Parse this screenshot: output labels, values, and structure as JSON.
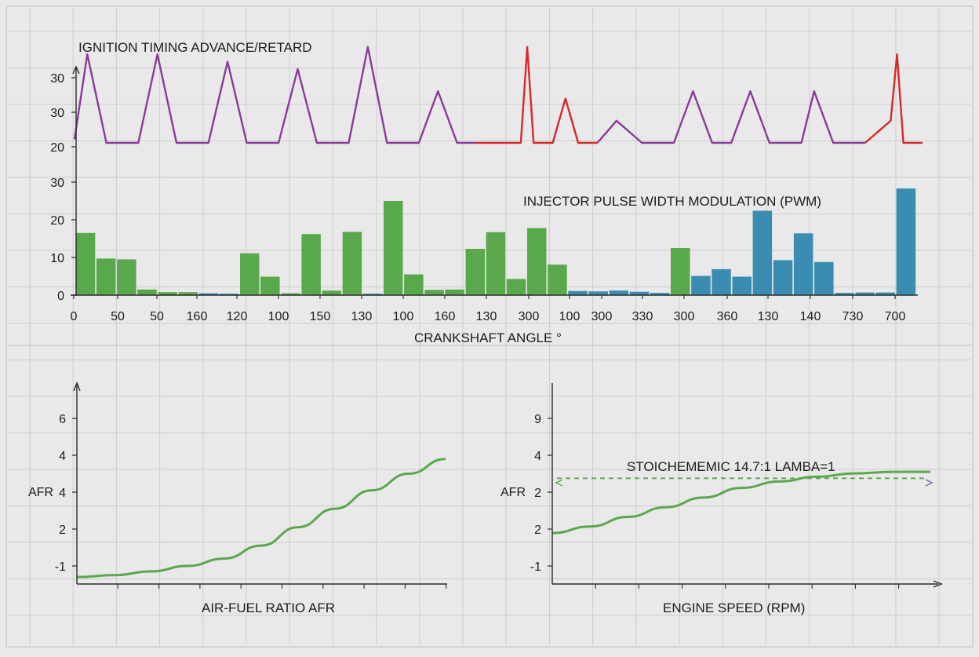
{
  "colors": {
    "background": "#e9e9e9",
    "grid": "#cdcdcd",
    "axis": "#2a2a2a",
    "ignition_purple": "#8a3a9a",
    "ignition_red": "#d8282a",
    "pwm_green": "#5aa84c",
    "pwm_blue": "#3a8db0",
    "afr_curve": "#5aa84c",
    "stoich_line": "#5aa84c"
  },
  "chart_data": [
    {
      "type": "line",
      "title": "IGNITION TIMING ADVANCE/RETARD",
      "y_tick_labels": [
        "30",
        "30",
        "20"
      ],
      "grid": true,
      "series": [
        {
          "color_key": "ignition_purple",
          "segments": [
            [
              [
                0,
                21.5
              ],
              [
                2,
                33
              ],
              [
                5,
                21
              ],
              [
                10,
                21
              ],
              [
                13,
                33
              ],
              [
                16,
                21
              ],
              [
                21,
                21
              ],
              [
                24,
                32
              ],
              [
                27,
                21
              ],
              [
                32,
                21
              ],
              [
                35,
                31
              ],
              [
                38,
                21
              ],
              [
                43,
                21
              ],
              [
                46,
                34
              ],
              [
                49,
                21
              ],
              [
                54,
                21
              ],
              [
                57,
                28
              ],
              [
                60,
                21
              ],
              [
                63,
                21
              ]
            ],
            [
              [
                82,
                21
              ],
              [
                85,
                24
              ],
              [
                89,
                21
              ],
              [
                94,
                21
              ],
              [
                97,
                28
              ],
              [
                100,
                21
              ],
              [
                103,
                21
              ],
              [
                106,
                28
              ],
              [
                109,
                21
              ],
              [
                114,
                21
              ],
              [
                116,
                28
              ],
              [
                119,
                21
              ],
              [
                124,
                21
              ]
            ]
          ]
        },
        {
          "color_key": "ignition_red",
          "segments": [
            [
              [
                63,
                21
              ],
              [
                70,
                21
              ],
              [
                71,
                34
              ],
              [
                72,
                21
              ],
              [
                75,
                21
              ],
              [
                77,
                27
              ],
              [
                79,
                21
              ],
              [
                82,
                21
              ]
            ],
            [
              [
                124,
                21
              ],
              [
                128,
                24
              ],
              [
                129,
                33
              ],
              [
                130,
                21
              ],
              [
                133,
                21
              ]
            ]
          ]
        }
      ]
    },
    {
      "type": "bar",
      "title": "INJECTOR PULSE WIDTH MODULATION (PWM)",
      "y_ticks": [
        0,
        10,
        20,
        30
      ],
      "ylim": [
        0,
        30
      ],
      "x_tick_labels": [
        "0",
        "50",
        "50",
        "160",
        "120",
        "100",
        "150",
        "130",
        "100",
        "160",
        "130",
        "300",
        "100",
        "300",
        "330",
        "300",
        "360",
        "130",
        "140",
        "730",
        "700"
      ],
      "xlabel": "CRANKSHAFT ANGLE °",
      "grid": true,
      "values": [
        16.5,
        9.7,
        9.5,
        1.5,
        0.8,
        0.8,
        0.5,
        0.4,
        11.1,
        4.9,
        0.5,
        16.2,
        1.2,
        16.8,
        0.4,
        25,
        5.5,
        1.4,
        1.5,
        12.3,
        16.7,
        4.3,
        17.8,
        8.1,
        1.1,
        1,
        1.2,
        0.9,
        0.6,
        12.5,
        5.1,
        6.9,
        4.9,
        22.4,
        9.3,
        16.4,
        8.8,
        0.6,
        0.7,
        0.7,
        28.3
      ],
      "colors": [
        "g",
        "g",
        "g",
        "g",
        "g",
        "g",
        "b",
        "b",
        "g",
        "g",
        "g",
        "g",
        "g",
        "g",
        "b",
        "g",
        "g",
        "g",
        "g",
        "g",
        "g",
        "g",
        "g",
        "g",
        "b",
        "b",
        "b",
        "b",
        "b",
        "g",
        "b",
        "b",
        "b",
        "b",
        "b",
        "b",
        "b",
        "b",
        "b",
        "b",
        "b"
      ]
    },
    {
      "type": "line",
      "ylabel": "AFR",
      "xlabel": "AIR-FUEL RATIO AFR",
      "y_tick_labels": [
        "6",
        "4",
        "4",
        "2",
        "-1"
      ],
      "grid": true,
      "series": [
        {
          "color_key": "afr_curve",
          "points": [
            [
              0,
              -0.6
            ],
            [
              0.1,
              -0.5
            ],
            [
              0.2,
              -0.3
            ],
            [
              0.3,
              0
            ],
            [
              0.4,
              0.4
            ],
            [
              0.5,
              1.1
            ],
            [
              0.6,
              2.1
            ],
            [
              0.7,
              3.1
            ],
            [
              0.8,
              4.1
            ],
            [
              0.9,
              5
            ],
            [
              1,
              5.8
            ]
          ]
        }
      ]
    },
    {
      "type": "line",
      "ylabel": "AFR",
      "xlabel": "ENGINE SPEED (RPM)",
      "y_tick_labels": [
        "9",
        "4",
        "2",
        "2",
        "-1"
      ],
      "annotation": "STOICHEMEMIC 14.7:1 LAMBA=1",
      "grid": true,
      "series": [
        {
          "color_key": "afr_curve",
          "points": [
            [
              0,
              1.8
            ],
            [
              0.1,
              2
            ],
            [
              0.2,
              2.3
            ],
            [
              0.3,
              2.6
            ],
            [
              0.4,
              2.9
            ],
            [
              0.5,
              3.2
            ],
            [
              0.6,
              3.4
            ],
            [
              0.7,
              3.55
            ],
            [
              0.8,
              3.65
            ],
            [
              0.9,
              3.7
            ],
            [
              1,
              3.7
            ]
          ]
        }
      ],
      "reference_line": {
        "y": 3.5,
        "style": "dashed",
        "arrow": "right"
      }
    }
  ]
}
